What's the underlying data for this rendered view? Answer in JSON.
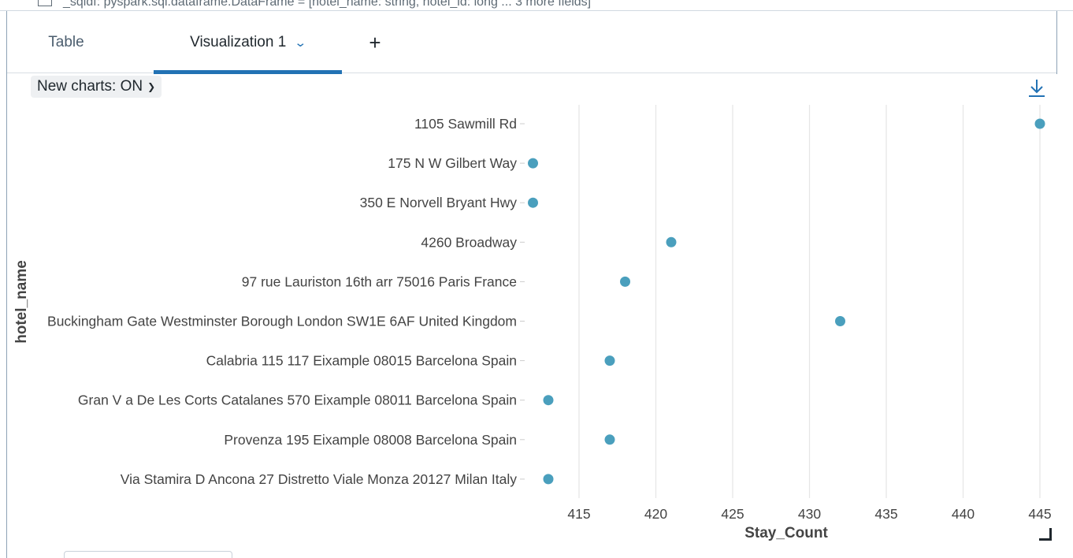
{
  "header": {
    "variable": "_sqldf",
    "type_text": "pyspark.sql.dataframe.DataFrame",
    "schema": "[hotel_name: string, hotel_id: long ... 3 more fields]"
  },
  "tabs": [
    {
      "label": "Table"
    },
    {
      "label": "Visualization 1"
    },
    {
      "label": "+"
    }
  ],
  "toolbar": {
    "new_charts_label": "New charts: ON"
  },
  "icons": {
    "download": "download-icon",
    "dropdown": "chevron-down-icon",
    "resize": "resize-handle-icon"
  },
  "colors": {
    "accent": "#2272b4",
    "point": "#4a9fbd",
    "grid": "#e6e6e6"
  },
  "chart_data": {
    "type": "scatter",
    "orientation": "horizontal",
    "xlabel": "Stay_Count",
    "ylabel": "hotel_name",
    "xlim": [
      411.5,
      445
    ],
    "xticks": [
      415,
      420,
      425,
      430,
      435,
      440,
      445
    ],
    "grid": "vertical",
    "categories": [
      "1105 Sawmill Rd",
      "175 N W Gilbert Way",
      "350 E Norvell Bryant Hwy",
      "4260 Broadway",
      "97 rue Lauriston 16th arr 75016 Paris France",
      "Buckingham Gate Westminster Borough London SW1E 6AF United Kingdom",
      "Calabria 115 117 Eixample 08015 Barcelona Spain",
      "Gran V a De Les Corts Catalanes 570 Eixample 08011 Barcelona Spain",
      "Provenza 195 Eixample 08008 Barcelona Spain",
      "Via Stamira D Ancona 27 Distretto Viale Monza 20127 Milan Italy"
    ],
    "values": [
      445,
      412,
      412,
      421,
      418,
      432,
      417,
      413,
      417,
      413
    ]
  }
}
